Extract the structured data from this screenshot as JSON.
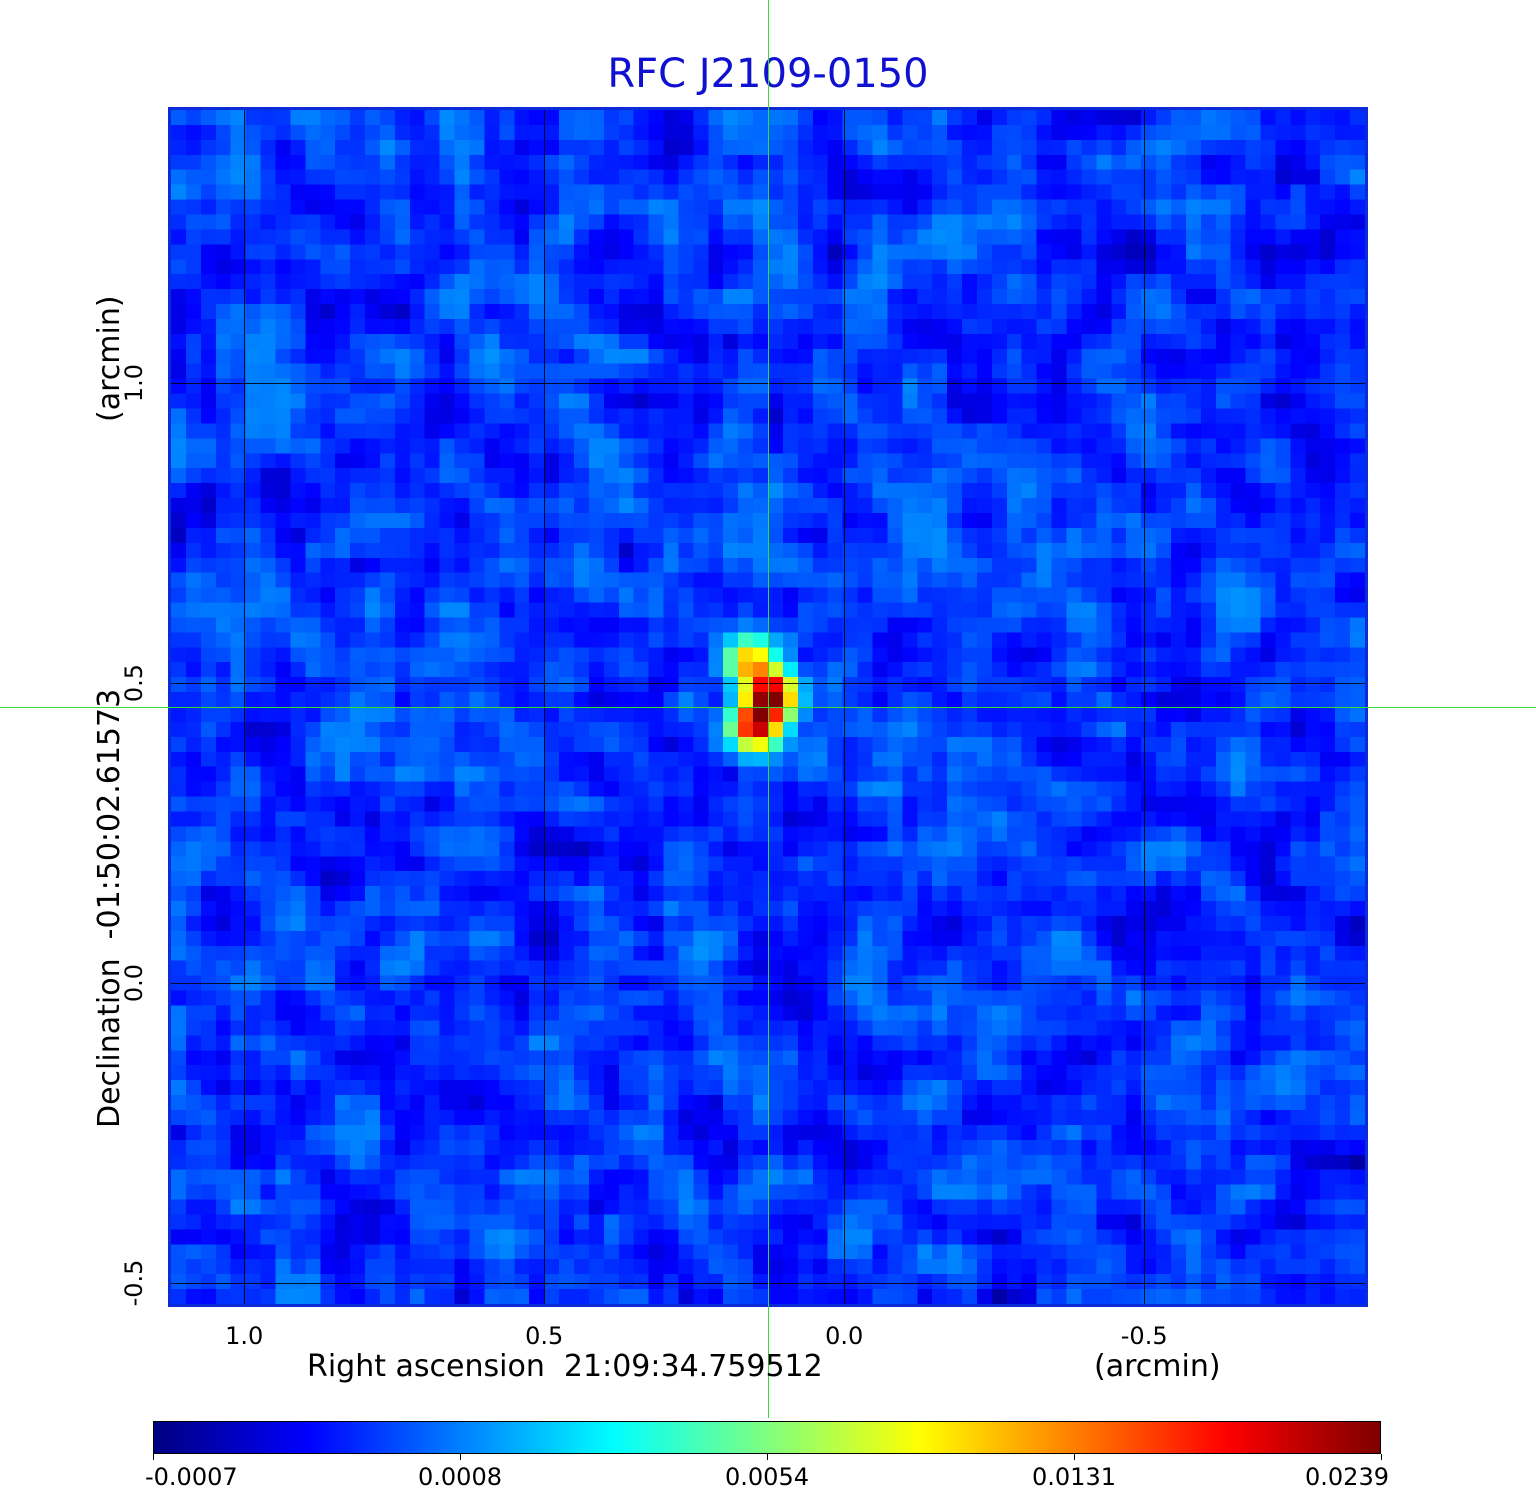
{
  "chart_data": {
    "type": "heatmap",
    "title": "RFC J2109-0150",
    "title_color": "#1010d0",
    "xlabel": "Right ascension  21:09:34.759512",
    "xlabel_unit": "(arcmin)",
    "ylabel": "Declination  -01:50:02.61573",
    "ylabel_unit": "(arcmin)",
    "x_ticks": [
      "1.0",
      "0.5",
      "0.0",
      "-0.5"
    ],
    "x_tick_values": [
      1.0,
      0.5,
      0.0,
      -0.5
    ],
    "y_ticks": [
      "1.0",
      "0.5",
      "0.0",
      "-0.5"
    ],
    "y_tick_values": [
      1.0,
      0.5,
      0.0,
      -0.5
    ],
    "xlim": [
      1.127,
      -0.873
    ],
    "ylim": [
      -0.54,
      1.46
    ],
    "grid": true,
    "colormap": "jet",
    "colorbar": {
      "labels": [
        "-0.0007",
        "0.0008",
        "0.0054",
        "0.0131",
        "0.0239"
      ],
      "range": [
        -0.0007,
        0.0239
      ]
    },
    "source": {
      "x": 0.127,
      "y": 0.46,
      "peak": 0.0239,
      "components": [
        {
          "dx": 0.005,
          "dy": 0.02,
          "amp": 0.0235
        },
        {
          "dx": -0.02,
          "dy": -0.03,
          "amp": 0.021
        },
        {
          "dx": -0.03,
          "dy": 0.075,
          "amp": 0.012
        }
      ]
    },
    "noise_rms": 0.0006,
    "crosshair": {
      "x": 0.127,
      "y": 0.46,
      "color": "#33dd33"
    }
  }
}
